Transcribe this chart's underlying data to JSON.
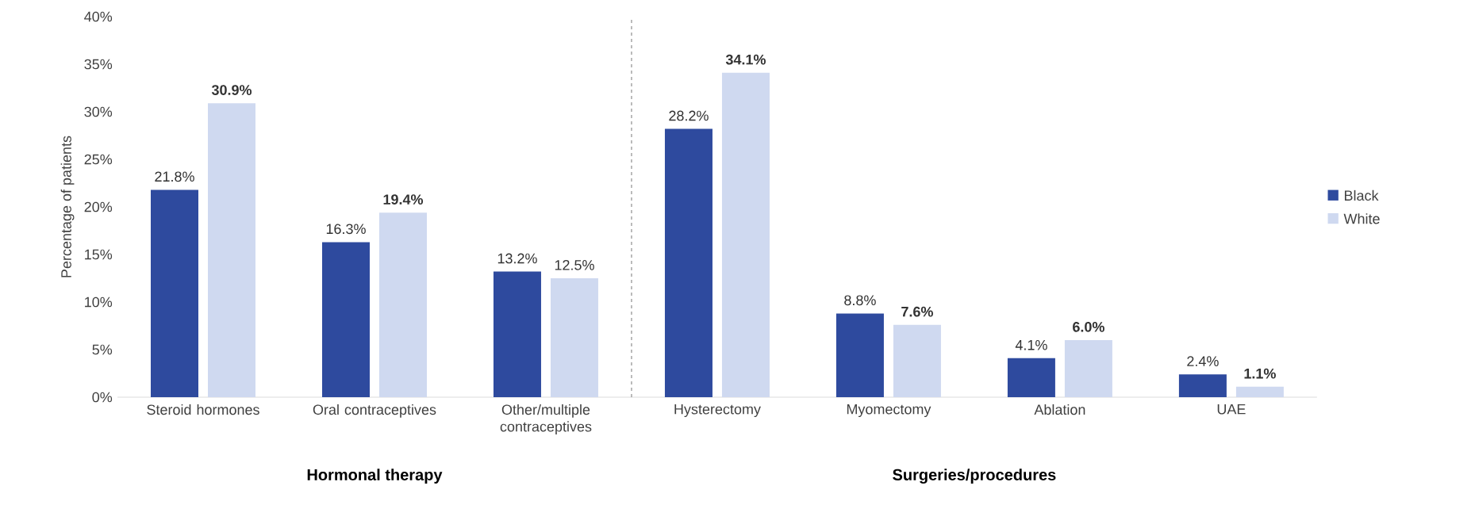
{
  "chart_data": {
    "type": "bar",
    "ylabel": "Percentage of patients",
    "categories": [
      "Steroid hormones",
      "Oral contraceptives",
      "Other/multiple contraceptives",
      "Hysterectomy",
      "Myomectomy",
      "Ablation",
      "UAE"
    ],
    "series": [
      {
        "name": "Black",
        "color": "#2e4a9e",
        "values": [
          21.8,
          16.3,
          13.2,
          28.2,
          8.8,
          4.1,
          2.4
        ],
        "value_labels": [
          "21.8%",
          "16.3%",
          "13.2%",
          "28.2%",
          "8.8%",
          "4.1%",
          "2.4%"
        ]
      },
      {
        "name": "White",
        "color": "#cfd9f0",
        "values": [
          30.9,
          19.4,
          12.5,
          34.1,
          7.6,
          6.0,
          1.1
        ],
        "value_labels": [
          "**30.9%**",
          "**19.4%**",
          "12.5%",
          "**34.1%**",
          "**7.6%**",
          "**6.0%**",
          "**1.1%**"
        ]
      }
    ],
    "ylim": [
      0,
      40
    ],
    "yticks": [
      {
        "value": 0,
        "label": "0%"
      },
      {
        "value": 5,
        "label": "5%"
      },
      {
        "value": 10,
        "label": "10%"
      },
      {
        "value": 15,
        "label": "15%"
      },
      {
        "value": 20,
        "label": "20%"
      },
      {
        "value": 25,
        "label": "25%"
      },
      {
        "value": 30,
        "label": "30%"
      },
      {
        "value": 35,
        "label": "35%"
      },
      {
        "value": 40,
        "label": "40%"
      }
    ],
    "annotations": [
      "**Hormonal therapy**",
      "**Surgeries/procedures**"
    ],
    "legend": "right",
    "grid": false
  }
}
